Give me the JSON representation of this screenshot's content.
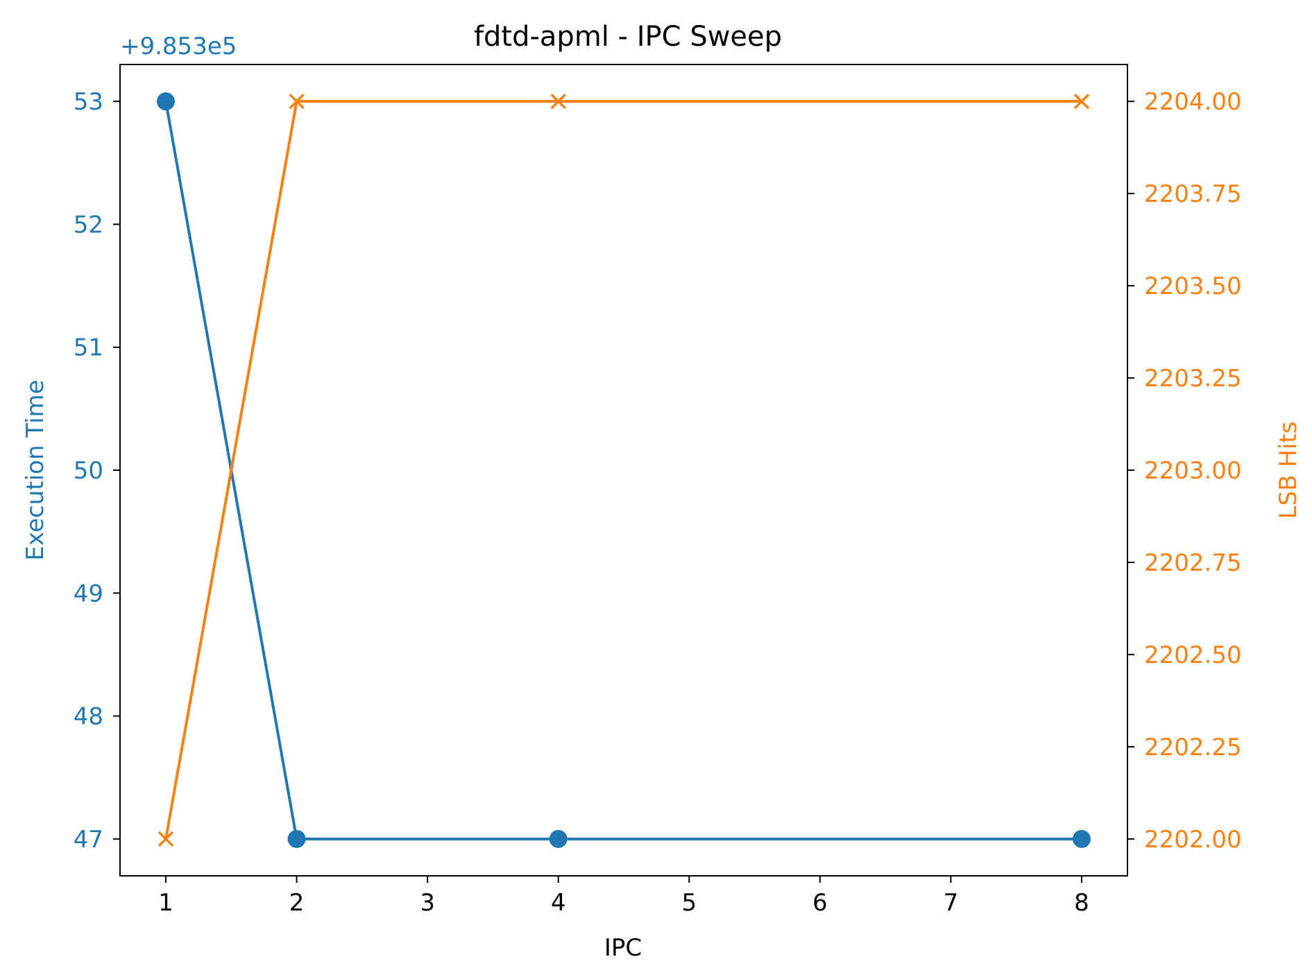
{
  "chart_data": {
    "type": "line",
    "title": "fdtd-apml - IPC Sweep",
    "xlabel": "IPC",
    "x": [
      1,
      2,
      4,
      8
    ],
    "xlim": [
      0.65,
      8.35
    ],
    "xticks": [
      "1",
      "2",
      "3",
      "4",
      "5",
      "6",
      "7",
      "8"
    ],
    "left_axis": {
      "label": "Execution Time",
      "color": "#1f77b4",
      "offset_text": "+9.853e5",
      "offset": 985300,
      "ylim": [
        46.7,
        53.3
      ],
      "ticks": [
        "47",
        "48",
        "49",
        "50",
        "51",
        "52",
        "53"
      ]
    },
    "right_axis": {
      "label": "LSB Hits",
      "color": "#ff7f0e",
      "ylim": [
        2201.9,
        2204.1
      ],
      "ticks": [
        "2202.00",
        "2202.25",
        "2202.50",
        "2202.75",
        "2203.00",
        "2203.25",
        "2203.50",
        "2203.75",
        "2204.00"
      ]
    },
    "series": [
      {
        "axis": "left",
        "marker": "circle",
        "color": "#1f77b4",
        "values": [
          985353,
          985347,
          985347,
          985347
        ]
      },
      {
        "axis": "right",
        "marker": "x",
        "color": "#ff7f0e",
        "values": [
          2202,
          2204,
          2204,
          2204
        ]
      }
    ],
    "grid": false,
    "legend": "none"
  }
}
